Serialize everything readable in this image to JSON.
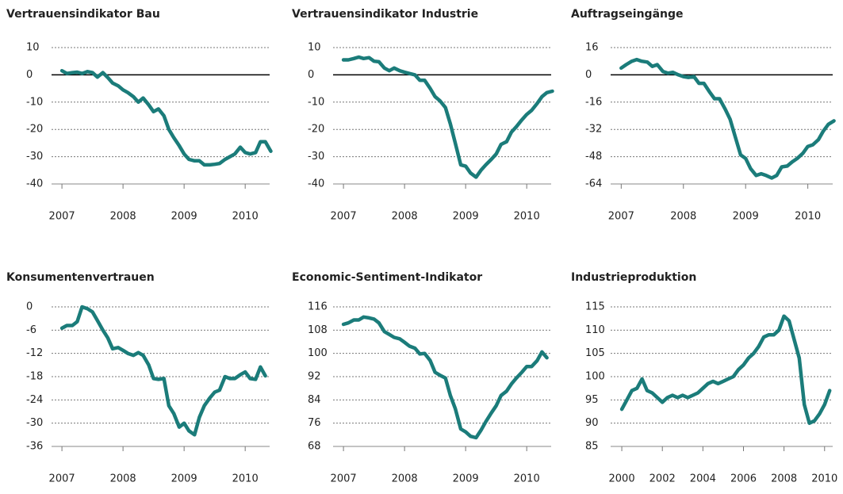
{
  "chart_data": [
    {
      "type": "line",
      "title": "Vertrauensindikator Bau",
      "color": "#1b7c7a",
      "x": [
        2007,
        2007.08,
        2007.17,
        2007.25,
        2007.33,
        2007.42,
        2007.5,
        2007.58,
        2007.67,
        2007.75,
        2007.83,
        2007.92,
        2008,
        2008.08,
        2008.17,
        2008.25,
        2008.33,
        2008.42,
        2008.5,
        2008.58,
        2008.67,
        2008.75,
        2008.83,
        2008.92,
        2009,
        2009.08,
        2009.17,
        2009.25,
        2009.33,
        2009.42,
        2009.5,
        2009.58,
        2009.67,
        2009.75,
        2009.83,
        2009.92,
        2010,
        2010.08,
        2010.17,
        2010.25,
        2010.33,
        2010.42
      ],
      "values": [
        1.5,
        0.5,
        0.8,
        1,
        0.5,
        1.2,
        0.8,
        -0.8,
        0.8,
        -1,
        -3,
        -4,
        -5.5,
        -6.5,
        -8,
        -10,
        -8.5,
        -11,
        -13.5,
        -12.5,
        -15,
        -20,
        -23,
        -26,
        -29,
        -31,
        -31.5,
        -31.5,
        -33,
        -33,
        -32.8,
        -32.5,
        -31,
        -30,
        -29,
        -26.5,
        -28.5,
        -29,
        -28.5,
        -24.5,
        -24.5,
        -28
      ],
      "xlim": [
        2006.83,
        2010.4
      ],
      "xticks": [
        2007,
        2008,
        2009,
        2010
      ],
      "ylim": [
        -40,
        10
      ],
      "yticks": [
        -40,
        -30,
        -20,
        -10,
        0,
        10
      ],
      "grid": true
    },
    {
      "type": "line",
      "title": "Vertrauensindikator Industrie",
      "color": "#1b7c7a",
      "x": [
        2007,
        2007.08,
        2007.17,
        2007.25,
        2007.33,
        2007.42,
        2007.5,
        2007.58,
        2007.67,
        2007.75,
        2007.83,
        2007.92,
        2008,
        2008.08,
        2008.17,
        2008.25,
        2008.33,
        2008.42,
        2008.5,
        2008.58,
        2008.67,
        2008.75,
        2008.83,
        2008.92,
        2009,
        2009.08,
        2009.17,
        2009.25,
        2009.33,
        2009.42,
        2009.5,
        2009.58,
        2009.67,
        2009.75,
        2009.83,
        2009.92,
        2010,
        2010.08,
        2010.17,
        2010.25,
        2010.33,
        2010.42
      ],
      "values": [
        5.5,
        5.5,
        6,
        6.5,
        6,
        6.3,
        5,
        4.8,
        2.5,
        1.5,
        2.5,
        1.5,
        1,
        0.5,
        0,
        -2,
        -2,
        -5,
        -8,
        -9.5,
        -12,
        -18,
        -25,
        -33,
        -33.5,
        -36,
        -37.5,
        -35,
        -33,
        -31,
        -29,
        -25.5,
        -24.5,
        -21,
        -19,
        -16.5,
        -14.5,
        -13,
        -10.5,
        -8,
        -6.5,
        -6
      ],
      "xlim": [
        2006.83,
        2010.4
      ],
      "xticks": [
        2007,
        2008,
        2009,
        2010
      ],
      "ylim": [
        -40,
        10
      ],
      "yticks": [
        -40,
        -30,
        -20,
        -10,
        0,
        10
      ],
      "grid": true
    },
    {
      "type": "line",
      "title": "Auftragseingänge",
      "color": "#1b7c7a",
      "x": [
        2007,
        2007.08,
        2007.17,
        2007.25,
        2007.33,
        2007.42,
        2007.5,
        2007.58,
        2007.67,
        2007.75,
        2007.83,
        2007.92,
        2008,
        2008.08,
        2008.17,
        2008.25,
        2008.33,
        2008.42,
        2008.5,
        2008.58,
        2008.67,
        2008.75,
        2008.83,
        2008.92,
        2009,
        2009.08,
        2009.17,
        2009.25,
        2009.33,
        2009.42,
        2009.5,
        2009.58,
        2009.67,
        2009.75,
        2009.83,
        2009.92,
        2010,
        2010.08,
        2010.17,
        2010.25,
        2010.33,
        2010.42
      ],
      "values": [
        4,
        6,
        8,
        9,
        8,
        7.5,
        5,
        6,
        2,
        1,
        1.5,
        0,
        -1,
        -1.5,
        -1,
        -5,
        -5,
        -10,
        -14,
        -14,
        -20,
        -26,
        -36,
        -47,
        -49,
        -55,
        -59,
        -58,
        -59,
        -60.5,
        -59,
        -54,
        -53.5,
        -51,
        -49,
        -46,
        -42,
        -41,
        -38,
        -33,
        -29,
        -27
      ],
      "xlim": [
        2006.83,
        2010.4
      ],
      "xticks": [
        2007,
        2008,
        2009,
        2010
      ],
      "ylim": [
        -64,
        16
      ],
      "yticks": [
        -64,
        -48,
        -32,
        -16,
        0,
        16
      ],
      "grid": true
    },
    {
      "type": "line",
      "title": "Konsumentenvertrauen",
      "color": "#1b7c7a",
      "x": [
        2007,
        2007.08,
        2007.17,
        2007.25,
        2007.33,
        2007.42,
        2007.5,
        2007.58,
        2007.67,
        2007.75,
        2007.83,
        2007.92,
        2008,
        2008.08,
        2008.17,
        2008.25,
        2008.33,
        2008.42,
        2008.5,
        2008.58,
        2008.67,
        2008.75,
        2008.83,
        2008.92,
        2009,
        2009.08,
        2009.17,
        2009.25,
        2009.33,
        2009.42,
        2009.5,
        2009.58,
        2009.67,
        2009.75,
        2009.83,
        2009.92,
        2010,
        2010.08,
        2010.17,
        2010.25,
        2010.33
      ],
      "values": [
        -5.5,
        -4.8,
        -4.8,
        -3.8,
        0,
        -0.5,
        -1.3,
        -3.5,
        -6,
        -8,
        -10.8,
        -10.5,
        -11.2,
        -12,
        -12.5,
        -11.8,
        -12.5,
        -15,
        -18.5,
        -18.7,
        -18.5,
        -25.5,
        -27.5,
        -31,
        -30,
        -32,
        -33,
        -28.5,
        -25.5,
        -23.5,
        -22,
        -21.5,
        -18,
        -18.5,
        -18.5,
        -17.5,
        -16.8,
        -18.5,
        -18.7,
        -15.5,
        -17.8
      ],
      "xlim": [
        2006.83,
        2010.4
      ],
      "xticks": [
        2007,
        2008,
        2009,
        2010
      ],
      "ylim": [
        -36,
        0
      ],
      "yticks": [
        -36,
        -30,
        -24,
        -18,
        -12,
        -6,
        0
      ],
      "grid": true
    },
    {
      "type": "line",
      "title": "Economic-Sentiment-Indikator",
      "color": "#1b7c7a",
      "x": [
        2007,
        2007.08,
        2007.17,
        2007.25,
        2007.33,
        2007.42,
        2007.5,
        2007.58,
        2007.67,
        2007.75,
        2007.83,
        2007.92,
        2008,
        2008.08,
        2008.17,
        2008.25,
        2008.33,
        2008.42,
        2008.5,
        2008.58,
        2008.67,
        2008.75,
        2008.83,
        2008.92,
        2009,
        2009.08,
        2009.17,
        2009.25,
        2009.33,
        2009.42,
        2009.5,
        2009.58,
        2009.67,
        2009.75,
        2009.83,
        2009.92,
        2010,
        2010.08,
        2010.17,
        2010.25,
        2010.33
      ],
      "values": [
        110,
        110.5,
        111.5,
        111.5,
        112.5,
        112.2,
        111.8,
        110.5,
        107.5,
        106.5,
        105.5,
        105,
        103.8,
        102.5,
        101.8,
        99.8,
        100,
        97.5,
        93.5,
        92.5,
        91.5,
        85.5,
        81,
        74,
        73,
        71.5,
        71,
        73.5,
        76.5,
        79.5,
        82,
        85.5,
        87,
        89.5,
        91.5,
        93.5,
        95.5,
        95.5,
        97.5,
        100.5,
        98.5
      ],
      "xlim": [
        2006.83,
        2010.4
      ],
      "xticks": [
        2007,
        2008,
        2009,
        2010
      ],
      "ylim": [
        68,
        116
      ],
      "yticks": [
        68,
        76,
        84,
        92,
        100,
        108,
        116
      ],
      "grid": true
    },
    {
      "type": "line",
      "title": "Industrieproduktion",
      "color": "#1b7c7a",
      "x": [
        2000,
        2000.25,
        2000.5,
        2000.75,
        2001,
        2001.25,
        2001.5,
        2001.75,
        2002,
        2002.25,
        2002.5,
        2002.75,
        2003,
        2003.25,
        2003.5,
        2003.75,
        2004,
        2004.25,
        2004.5,
        2004.75,
        2005,
        2005.25,
        2005.5,
        2005.75,
        2006,
        2006.25,
        2006.5,
        2006.75,
        2007,
        2007.25,
        2007.5,
        2007.75,
        2008,
        2008.25,
        2008.5,
        2008.75,
        2009,
        2009.25,
        2009.5,
        2009.75,
        2010,
        2010.25
      ],
      "values": [
        93,
        95,
        97,
        97.5,
        99.5,
        97,
        96.5,
        95.5,
        94.5,
        95.5,
        96,
        95.5,
        96,
        95.5,
        96,
        96.5,
        97.5,
        98.5,
        99,
        98.5,
        99,
        99.5,
        100,
        101.5,
        102.5,
        104,
        105,
        106.5,
        108.5,
        109,
        109,
        110,
        113,
        112,
        108,
        104,
        94,
        90,
        90.5,
        92,
        94,
        97
      ],
      "xlim": [
        1999.45,
        2010.4
      ],
      "xticks": [
        2000,
        2002,
        2004,
        2006,
        2008,
        2010
      ],
      "ylim": [
        85,
        115
      ],
      "yticks": [
        85,
        90,
        95,
        100,
        105,
        110,
        115
      ],
      "grid": true
    }
  ]
}
